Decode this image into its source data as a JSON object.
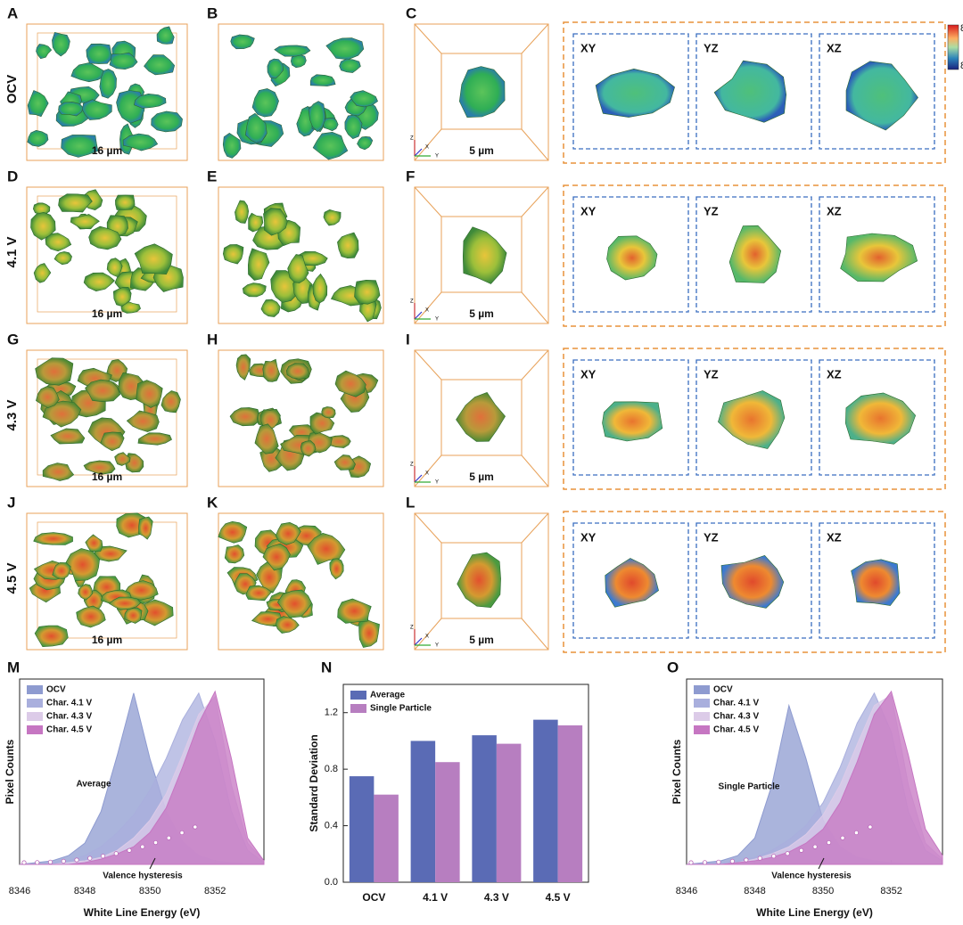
{
  "rows": [
    {
      "label": "OCV",
      "letters": [
        "A",
        "B",
        "C"
      ],
      "scale_large": "16 µm",
      "scale_small": "5 µm",
      "slices": [
        "XY",
        "YZ",
        "XZ"
      ]
    },
    {
      "label": "4.1 V",
      "letters": [
        "D",
        "E",
        "F"
      ],
      "scale_large": "16 µm",
      "scale_small": "5 µm",
      "slices": [
        "XY",
        "YZ",
        "XZ"
      ]
    },
    {
      "label": "4.3 V",
      "letters": [
        "G",
        "H",
        "I"
      ],
      "scale_large": "16 µm",
      "scale_small": "5 µm",
      "slices": [
        "XY",
        "YZ",
        "XZ"
      ]
    },
    {
      "label": "4.5 V",
      "letters": [
        "J",
        "K",
        "L"
      ],
      "scale_large": "16 µm",
      "scale_small": "5 µm",
      "slices": [
        "XY",
        "YZ",
        "XZ"
      ]
    }
  ],
  "triad": [
    "Z",
    "X",
    "Y"
  ],
  "colorbar_labels": [
    "8",
    "8"
  ],
  "chart_data": [
    {
      "type": "area",
      "letter": "M",
      "xlabel": "White Line Energy (eV)",
      "ylabel": "Pixel Counts",
      "legend": "upper left",
      "annotations": [
        "Average",
        "Valence hysteresis"
      ],
      "x": [
        8346,
        8347,
        8347.5,
        8348,
        8348.5,
        8349,
        8349.5,
        8350,
        8350.5,
        8351,
        8351.5,
        8352,
        8352.5,
        8353,
        8353.5
      ],
      "xlim": [
        8346,
        8353.5
      ],
      "xticks": [
        8346,
        8348,
        8350,
        8352
      ],
      "ylim": [
        0,
        1.05
      ],
      "series": [
        {
          "name": "OCV",
          "color": "#8e9bd0",
          "values": [
            0,
            0.02,
            0.05,
            0.12,
            0.3,
            0.62,
            0.97,
            0.6,
            0.3,
            0.13,
            0.05,
            0.02,
            0.01,
            0,
            0
          ]
        },
        {
          "name": "Char. 4.1 V",
          "color": "#a9afdd",
          "values": [
            0,
            0.01,
            0.02,
            0.05,
            0.1,
            0.18,
            0.28,
            0.42,
            0.6,
            0.82,
            0.97,
            0.7,
            0.3,
            0.08,
            0.01
          ]
        },
        {
          "name": "Char. 4.3 V",
          "color": "#dccbe8",
          "values": [
            0,
            0,
            0.01,
            0.02,
            0.04,
            0.08,
            0.15,
            0.25,
            0.4,
            0.62,
            0.85,
            0.95,
            0.45,
            0.12,
            0.02
          ]
        },
        {
          "name": "Char. 4.5 V",
          "color": "#c676c2",
          "values": [
            0,
            0,
            0,
            0.01,
            0.03,
            0.06,
            0.1,
            0.18,
            0.32,
            0.55,
            0.8,
            0.98,
            0.6,
            0.15,
            0.02
          ]
        }
      ]
    },
    {
      "type": "bar",
      "letter": "N",
      "ylabel": "Standard Deviation",
      "legend": "upper left",
      "categories": [
        "OCV",
        "4.1 V",
        "4.3 V",
        "4.5 V"
      ],
      "ylim": [
        0,
        1.4
      ],
      "yticks": [
        {
          "value": 0,
          "label": "0.0"
        },
        0.4,
        0.8,
        1.2
      ],
      "series": [
        {
          "name": "Average",
          "color": "#5a6bb5",
          "values": [
            0.75,
            1.0,
            1.04,
            1.15
          ]
        },
        {
          "name": "Single Particle",
          "color": "#b77ec0",
          "values": [
            0.62,
            0.85,
            0.98,
            1.11
          ]
        }
      ]
    },
    {
      "type": "area",
      "letter": "O",
      "xlabel": "White Line Energy (eV)",
      "ylabel": "Pixel Counts",
      "legend": "upper left",
      "annotations": [
        "Single Particle",
        "Valence hysteresis"
      ],
      "x": [
        8346,
        8347,
        8347.5,
        8348,
        8348.5,
        8349,
        8349.5,
        8350,
        8350.5,
        8351,
        8351.5,
        8352,
        8352.5,
        8353,
        8353.5
      ],
      "xlim": [
        8346,
        8353.5
      ],
      "xticks": [
        8346,
        8348,
        8350,
        8352
      ],
      "ylim": [
        0,
        1.05
      ],
      "series": [
        {
          "name": "OCV",
          "color": "#8e9bd0",
          "values": [
            0,
            0.02,
            0.05,
            0.15,
            0.45,
            0.9,
            0.6,
            0.25,
            0.1,
            0.04,
            0.02,
            0.01,
            0,
            0,
            0
          ]
        },
        {
          "name": "Char. 4.1 V",
          "color": "#a9afdd",
          "values": [
            0,
            0.01,
            0.02,
            0.04,
            0.08,
            0.14,
            0.22,
            0.35,
            0.55,
            0.8,
            0.97,
            0.75,
            0.3,
            0.08,
            0.02
          ]
        },
        {
          "name": "Char. 4.3 V",
          "color": "#dccbe8",
          "values": [
            0,
            0,
            0.01,
            0.03,
            0.06,
            0.1,
            0.17,
            0.28,
            0.45,
            0.68,
            0.9,
            0.96,
            0.45,
            0.12,
            0.03
          ]
        },
        {
          "name": "Char. 4.5 V",
          "color": "#c676c2",
          "values": [
            0,
            0,
            0.01,
            0.02,
            0.04,
            0.07,
            0.12,
            0.2,
            0.35,
            0.58,
            0.85,
            0.98,
            0.62,
            0.2,
            0.05
          ]
        }
      ]
    }
  ]
}
